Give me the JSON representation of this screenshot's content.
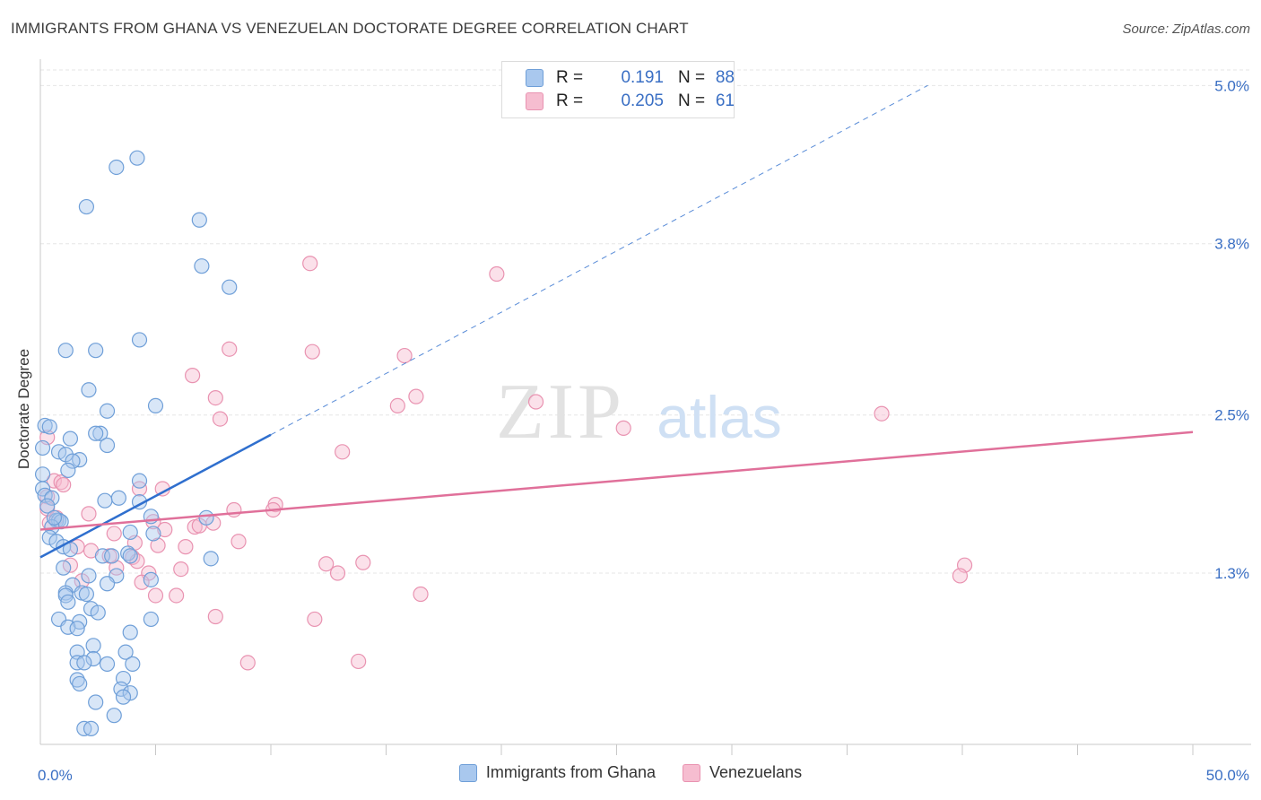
{
  "title": "IMMIGRANTS FROM GHANA VS VENEZUELAN DOCTORATE DEGREE CORRELATION CHART",
  "source": "Source: ZipAtlas.com",
  "watermark": {
    "zip": "ZIP",
    "atlas": "atlas"
  },
  "stats_legend": {
    "r_label": "R =",
    "n_label": "N =",
    "rows": [
      {
        "r": "0.191",
        "n": "88"
      },
      {
        "r": "0.205",
        "n": "61"
      }
    ]
  },
  "colors": {
    "blue_fill": "#a9c8ee",
    "blue_stroke": "#6f9fd8",
    "blue_line": "#2f6fce",
    "pink_fill": "#f6bdd0",
    "pink_stroke": "#e993b1",
    "pink_line": "#e0709a",
    "axis_text": "#3a6fc4",
    "grid": "#e6e6e6"
  },
  "chart_data": {
    "type": "scatter",
    "title": "IMMIGRANTS FROM GHANA VS VENEZUELAN DOCTORATE DEGREE CORRELATION CHART",
    "xlabel": "",
    "ylabel": "Doctorate Degree",
    "x_unit": "%",
    "xlim": [
      0,
      50
    ],
    "ylim": [
      0,
      5.2
    ],
    "x_tick_labels": [
      "0.0%",
      "50.0%"
    ],
    "y_ticks": [
      1.3,
      2.5,
      3.8,
      5.0
    ],
    "y_tick_labels": [
      "1.3%",
      "2.5%",
      "3.8%",
      "5.0%"
    ],
    "legend_position": "top-center",
    "series": [
      {
        "name": "Immigrants from Ghana",
        "color": "blue",
        "trend": {
          "x0": 0,
          "y0": 1.42,
          "x1": 10,
          "y1": 2.35,
          "dashed_to_x": 38.5
        },
        "points": [
          [
            4.2,
            4.45
          ],
          [
            3.3,
            4.38
          ],
          [
            2.0,
            4.08
          ],
          [
            6.9,
            3.98
          ],
          [
            7.0,
            3.63
          ],
          [
            8.2,
            3.47
          ],
          [
            1.1,
            2.99
          ],
          [
            2.4,
            2.99
          ],
          [
            4.3,
            3.07
          ],
          [
            2.1,
            2.69
          ],
          [
            5.0,
            2.57
          ],
          [
            2.9,
            2.53
          ],
          [
            0.2,
            2.42
          ],
          [
            0.4,
            2.41
          ],
          [
            2.6,
            2.36
          ],
          [
            1.3,
            2.32
          ],
          [
            2.9,
            2.27
          ],
          [
            0.1,
            2.25
          ],
          [
            0.8,
            2.22
          ],
          [
            1.1,
            2.2
          ],
          [
            1.7,
            2.16
          ],
          [
            1.4,
            2.15
          ],
          [
            1.2,
            2.08
          ],
          [
            0.1,
            2.05
          ],
          [
            4.3,
            2.0
          ],
          [
            0.1,
            1.94
          ],
          [
            0.2,
            1.89
          ],
          [
            0.5,
            1.87
          ],
          [
            2.8,
            1.85
          ],
          [
            3.4,
            1.87
          ],
          [
            4.3,
            1.84
          ],
          [
            0.3,
            1.81
          ],
          [
            0.7,
            1.7
          ],
          [
            0.8,
            1.7
          ],
          [
            0.9,
            1.69
          ],
          [
            0.5,
            1.65
          ],
          [
            7.2,
            1.72
          ],
          [
            4.8,
            1.73
          ],
          [
            3.9,
            1.61
          ],
          [
            4.9,
            1.6
          ],
          [
            0.4,
            1.57
          ],
          [
            0.7,
            1.54
          ],
          [
            1.0,
            1.5
          ],
          [
            1.3,
            1.48
          ],
          [
            3.8,
            1.45
          ],
          [
            2.7,
            1.43
          ],
          [
            3.1,
            1.43
          ],
          [
            3.9,
            1.43
          ],
          [
            7.4,
            1.41
          ],
          [
            1.0,
            1.34
          ],
          [
            2.1,
            1.28
          ],
          [
            3.3,
            1.28
          ],
          [
            4.8,
            1.25
          ],
          [
            1.4,
            1.21
          ],
          [
            2.9,
            1.22
          ],
          [
            1.1,
            1.15
          ],
          [
            1.8,
            1.15
          ],
          [
            1.1,
            1.13
          ],
          [
            2.0,
            1.14
          ],
          [
            1.2,
            1.08
          ],
          [
            2.2,
            1.03
          ],
          [
            2.5,
            1.0
          ],
          [
            0.8,
            0.95
          ],
          [
            1.7,
            0.93
          ],
          [
            4.8,
            0.95
          ],
          [
            1.2,
            0.89
          ],
          [
            1.6,
            0.88
          ],
          [
            3.9,
            0.85
          ],
          [
            2.3,
            0.75
          ],
          [
            1.6,
            0.7
          ],
          [
            2.3,
            0.65
          ],
          [
            1.6,
            0.62
          ],
          [
            1.9,
            0.62
          ],
          [
            2.9,
            0.61
          ],
          [
            3.7,
            0.7
          ],
          [
            4.0,
            0.61
          ],
          [
            1.6,
            0.49
          ],
          [
            1.7,
            0.46
          ],
          [
            3.6,
            0.5
          ],
          [
            3.5,
            0.42
          ],
          [
            3.9,
            0.39
          ],
          [
            3.6,
            0.36
          ],
          [
            2.4,
            0.32
          ],
          [
            3.2,
            0.22
          ],
          [
            1.9,
            0.12
          ],
          [
            2.2,
            0.12
          ],
          [
            2.4,
            2.36
          ],
          [
            0.6,
            1.72
          ]
        ]
      },
      {
        "name": "Venezuelans",
        "color": "pink",
        "trend": {
          "x0": 0,
          "y0": 1.63,
          "x1": 50,
          "y1": 2.37
        },
        "points": [
          [
            11.7,
            3.65
          ],
          [
            19.8,
            3.57
          ],
          [
            8.2,
            3.0
          ],
          [
            11.8,
            2.98
          ],
          [
            15.8,
            2.95
          ],
          [
            6.6,
            2.8
          ],
          [
            7.6,
            2.63
          ],
          [
            16.3,
            2.64
          ],
          [
            15.5,
            2.57
          ],
          [
            21.5,
            2.6
          ],
          [
            7.8,
            2.47
          ],
          [
            36.5,
            2.51
          ],
          [
            25.3,
            2.4
          ],
          [
            13.1,
            2.22
          ],
          [
            0.3,
            2.33
          ],
          [
            0.6,
            2.0
          ],
          [
            0.9,
            1.99
          ],
          [
            1.0,
            1.97
          ],
          [
            5.3,
            1.94
          ],
          [
            0.3,
            1.88
          ],
          [
            10.2,
            1.82
          ],
          [
            4.3,
            1.94
          ],
          [
            8.4,
            1.78
          ],
          [
            10.1,
            1.78
          ],
          [
            0.3,
            1.79
          ],
          [
            0.7,
            1.72
          ],
          [
            2.1,
            1.75
          ],
          [
            4.9,
            1.69
          ],
          [
            6.7,
            1.65
          ],
          [
            7.5,
            1.68
          ],
          [
            0.4,
            1.68
          ],
          [
            3.2,
            1.6
          ],
          [
            8.6,
            1.54
          ],
          [
            4.1,
            1.53
          ],
          [
            5.1,
            1.51
          ],
          [
            1.6,
            1.5
          ],
          [
            6.3,
            1.5
          ],
          [
            2.2,
            1.47
          ],
          [
            3.0,
            1.43
          ],
          [
            4.0,
            1.42
          ],
          [
            4.2,
            1.39
          ],
          [
            12.4,
            1.37
          ],
          [
            14.0,
            1.38
          ],
          [
            1.3,
            1.36
          ],
          [
            3.3,
            1.34
          ],
          [
            40.1,
            1.36
          ],
          [
            39.9,
            1.28
          ],
          [
            4.7,
            1.3
          ],
          [
            6.1,
            1.33
          ],
          [
            12.9,
            1.3
          ],
          [
            4.4,
            1.23
          ],
          [
            5.0,
            1.13
          ],
          [
            5.9,
            1.13
          ],
          [
            16.5,
            1.14
          ],
          [
            1.8,
            1.24
          ],
          [
            7.6,
            0.97
          ],
          [
            11.9,
            0.95
          ],
          [
            9.0,
            0.62
          ],
          [
            13.8,
            0.63
          ],
          [
            6.9,
            1.66
          ],
          [
            5.4,
            1.63
          ]
        ]
      }
    ]
  }
}
